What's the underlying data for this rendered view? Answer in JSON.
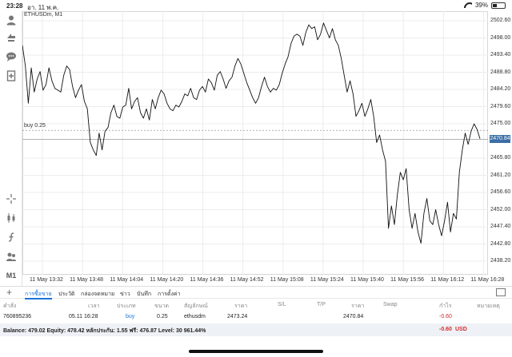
{
  "status_bar": {
    "time": "23:28",
    "date": "อา. 11 พ.ค.",
    "battery": "39%",
    "battery_level": 0.39
  },
  "toolbar": {
    "icons": [
      "account-icon",
      "trade-icon",
      "chat-icon",
      "new-order-icon",
      "crosshair-icon",
      "chart-type-icon",
      "indicator-icon",
      "objects-icon"
    ],
    "timeframe": "M1"
  },
  "chart": {
    "symbol": "ETHUSDm, M1",
    "buy_label": "buy 0.25",
    "current_price": "2470.84",
    "colors": {
      "line": "#111111",
      "grid": "#ececec",
      "bid_line": "#a8a8a8",
      "order_line": "#9a9a9a",
      "current_price_bg": "#3b6ea5"
    }
  },
  "chart_data": {
    "type": "line",
    "price_ticks": [
      "2502.60",
      "2498.00",
      "2493.40",
      "2488.80",
      "2484.20",
      "2479.60",
      "2475.00",
      "2470.84",
      "2465.80",
      "2461.20",
      "2456.60",
      "2452.00",
      "2447.40",
      "2442.80",
      "2438.20"
    ],
    "time_ticks": [
      "11 May 13:32",
      "11 May 13:48",
      "11 May 14:04",
      "11 May 14:20",
      "11 May 14:36",
      "11 May 14:52",
      "11 May 15:08",
      "11 May 15:24",
      "11 May 15:40",
      "11 May 15:56",
      "11 May 16:12",
      "11 May 16:28"
    ],
    "ylim": [
      2436.0,
      2505.0
    ],
    "buy_price": 2473.24,
    "bid_price": 2470.84,
    "grid": true,
    "series": [
      {
        "values": [
          2496.0,
          2490.5,
          2480.5,
          2490.0,
          2483.5,
          2487.0,
          2489.0,
          2484.0,
          2485.5,
          2490.0,
          2486.5,
          2484.5,
          2484.0,
          2483.5,
          2488.0,
          2490.5,
          2489.5,
          2485.0,
          2482.0,
          2484.0,
          2485.5,
          2481.0,
          2479.0,
          2470.0,
          2468.0,
          2466.5,
          2472.5,
          2468.0,
          2473.0,
          2474.0,
          2478.0,
          2480.0,
          2477.0,
          2476.5,
          2479.5,
          2480.0,
          2484.5,
          2479.0,
          2481.0,
          2482.0,
          2478.0,
          2476.5,
          2479.0,
          2476.0,
          2481.5,
          2479.0,
          2482.0,
          2484.0,
          2483.0,
          2480.5,
          2479.0,
          2478.5,
          2480.0,
          2479.5,
          2481.0,
          2483.0,
          2482.5,
          2484.5,
          2482.0,
          2481.5,
          2484.0,
          2485.0,
          2483.5,
          2487.0,
          2486.0,
          2484.0,
          2488.0,
          2489.0,
          2487.0,
          2484.5,
          2486.5,
          2487.5,
          2490.5,
          2492.5,
          2491.0,
          2488.5,
          2486.0,
          2484.0,
          2482.0,
          2480.5,
          2482.0,
          2485.0,
          2487.5,
          2485.0,
          2483.5,
          2484.5,
          2484.0,
          2485.5,
          2488.5,
          2491.0,
          2493.0,
          2496.5,
          2498.5,
          2499.0,
          2498.5,
          2496.0,
          2499.5,
          2501.5,
          2500.5,
          2501.0,
          2497.5,
          2499.0,
          2502.0,
          2500.0,
          2498.0,
          2500.5,
          2497.5,
          2496.0,
          2492.5,
          2488.0,
          2483.5,
          2486.5,
          2483.0,
          2477.0,
          2478.5,
          2480.5,
          2477.0,
          2479.0,
          2481.5,
          2477.0,
          2470.0,
          2472.0,
          2468.0,
          2465.0,
          2447.0,
          2453.0,
          2448.0,
          2456.0,
          2462.0,
          2460.0,
          2463.0,
          2452.0,
          2447.0,
          2451.0,
          2446.0,
          2443.0,
          2451.0,
          2455.0,
          2449.0,
          2448.0,
          2452.0,
          2448.0,
          2445.0,
          2449.0,
          2454.0,
          2446.0,
          2451.0,
          2449.5,
          2462.0,
          2468.0,
          2472.5,
          2469.5,
          2473.0,
          2475.0,
          2473.5,
          2471.0
        ]
      }
    ]
  },
  "tabs": {
    "items": [
      "การซื้อขาย",
      "ประวัติ",
      "กล่องจดหมาย",
      "ข่าว",
      "บันทึก",
      "การตั้งค่า"
    ],
    "active_index": 0
  },
  "positions": {
    "headers": [
      "คำสั่ง",
      "เวลา",
      "ประเภท",
      "ขนาด",
      "สัญลักษณ์",
      "ราคา",
      "S/L",
      "T/P",
      "ราคา",
      "Swap",
      "กำไร",
      "หมายเหตุ"
    ],
    "rows": [
      {
        "ticket": "760895236",
        "time": "05.11 16:28",
        "type": "buy",
        "volume": "0.25",
        "symbol": "ethusdm",
        "open_price": "2473.24",
        "sl": "",
        "tp": "",
        "price": "2470.84",
        "swap": "",
        "profit": "-0.60",
        "comment": ""
      }
    ]
  },
  "balance": {
    "summary": "Balance: 479.02 Equity: 478.42 หลักประกัน: 1.55 ฟรี: 476.87 Level: 30 961.44%",
    "profit": "-0.60",
    "currency": "USD"
  }
}
